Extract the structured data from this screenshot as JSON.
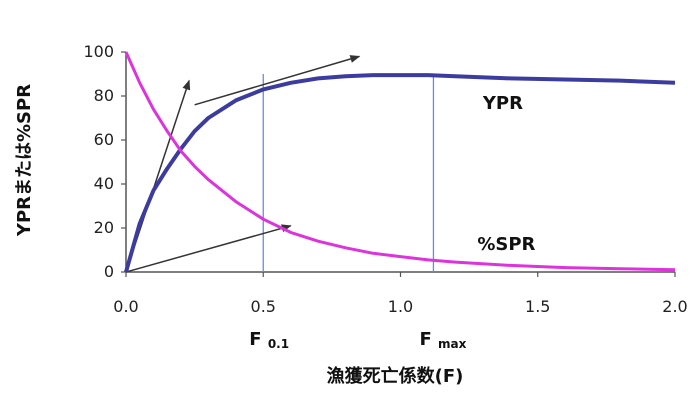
{
  "chart_data": {
    "type": "line",
    "title": "",
    "xlabel": "漁獲死亡係数(F)",
    "ylabel": "YPRまたは%SPR",
    "xlim": [
      0,
      2.0
    ],
    "ylim": [
      0,
      100
    ],
    "xticks": [
      "0.0",
      "0.5",
      "1.0",
      "1.5",
      "2.0"
    ],
    "yticks": [
      "0",
      "20",
      "40",
      "60",
      "80",
      "100"
    ],
    "grid": false,
    "series": [
      {
        "name": "YPR",
        "color": "#3c3ca0",
        "x": [
          0,
          0.05,
          0.1,
          0.15,
          0.2,
          0.25,
          0.3,
          0.4,
          0.5,
          0.6,
          0.7,
          0.8,
          0.9,
          1.0,
          1.1,
          1.2,
          1.4,
          1.6,
          1.8,
          2.0
        ],
        "values": [
          0,
          22,
          37,
          47,
          56,
          64,
          70,
          78,
          83,
          86,
          88,
          89,
          89.5,
          89.5,
          89.5,
          89,
          88,
          87.5,
          87,
          86
        ]
      },
      {
        "name": "%SPR",
        "color": "#dd33dd",
        "x": [
          0,
          0.05,
          0.1,
          0.15,
          0.2,
          0.25,
          0.3,
          0.4,
          0.5,
          0.6,
          0.7,
          0.8,
          0.9,
          1.0,
          1.1,
          1.2,
          1.4,
          1.6,
          1.8,
          2.0
        ],
        "values": [
          100,
          86,
          74,
          64,
          55,
          48,
          42,
          32,
          24,
          18,
          14,
          11,
          8.5,
          7,
          5.5,
          4.5,
          3,
          2,
          1.5,
          1
        ]
      }
    ],
    "reference_lines": [
      {
        "label": "F",
        "sub": "0.1",
        "x": 0.5
      },
      {
        "label": "F",
        "sub": "max",
        "x": 1.12
      }
    ],
    "tangent_arrows": [
      {
        "from": [
          0,
          0
        ],
        "to": [
          0.23,
          87
        ]
      },
      {
        "from": [
          0.25,
          76
        ],
        "to": [
          0.85,
          98
        ]
      },
      {
        "from": [
          0,
          0
        ],
        "to": [
          0.6,
          21
        ]
      }
    ],
    "ref_line_color": "#6a8ae0",
    "arrow_color": "#333333"
  }
}
